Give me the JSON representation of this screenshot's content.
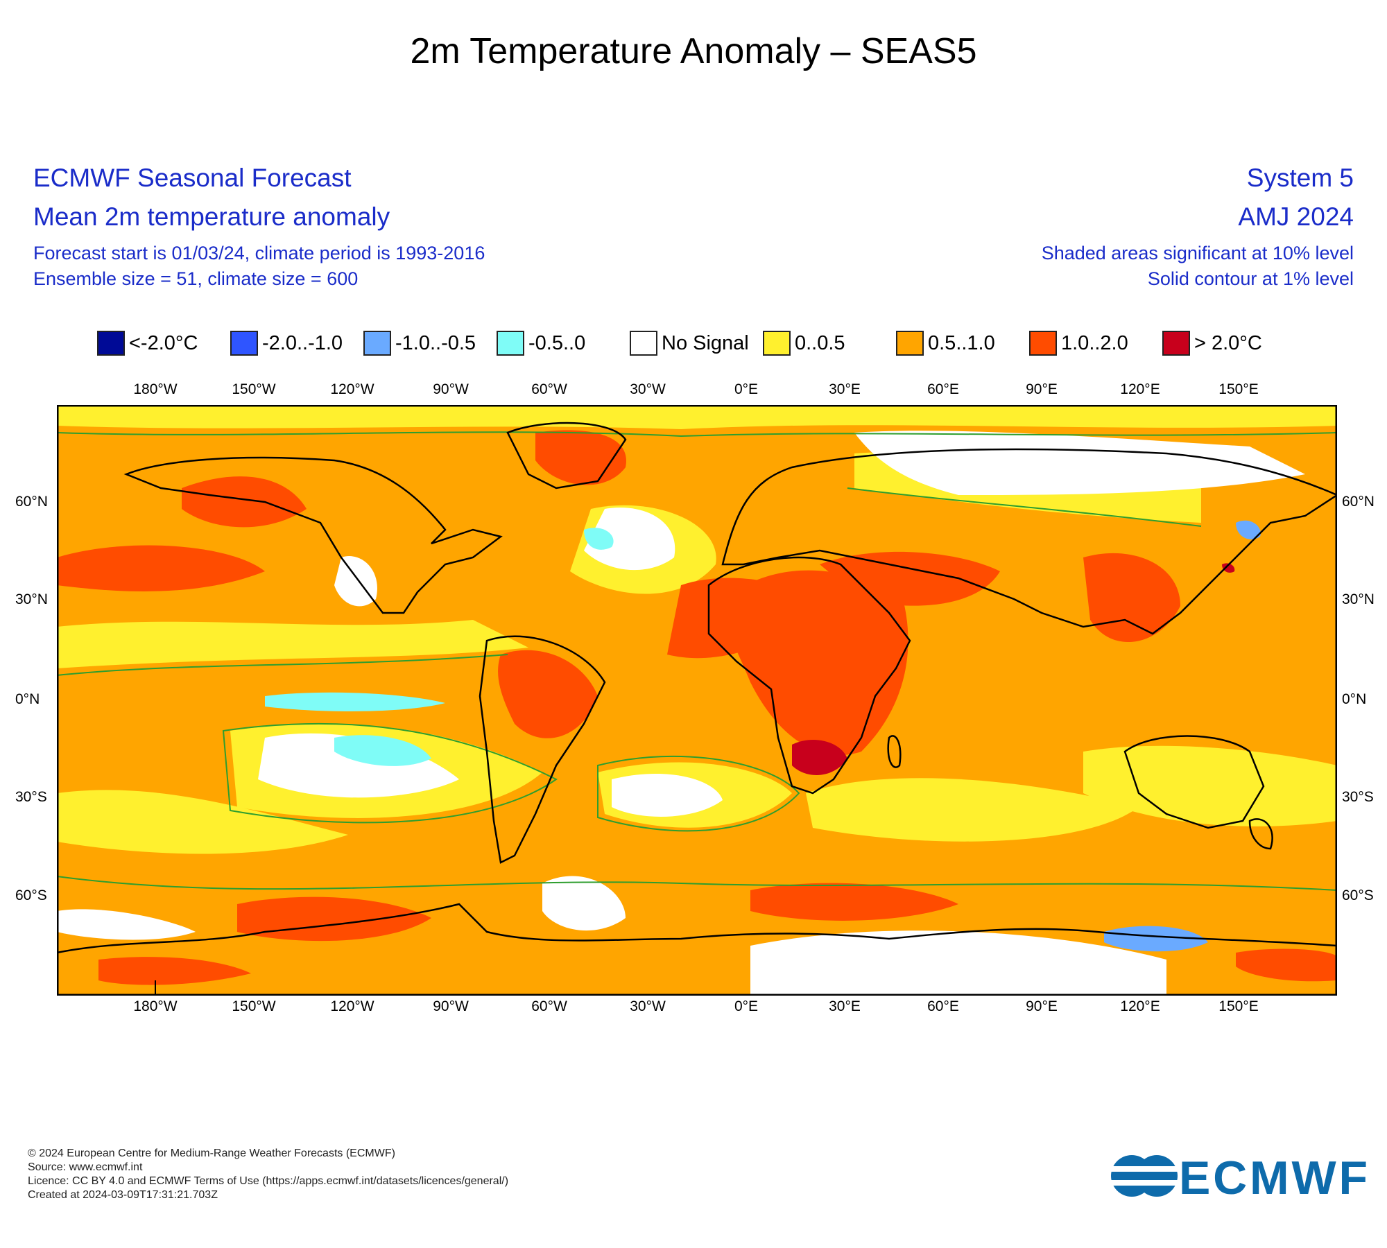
{
  "title": "2m Temperature Anomaly – SEAS5",
  "header_left": {
    "line1": "ECMWF Seasonal Forecast",
    "line2": "Mean 2m temperature anomaly",
    "line3": "Forecast start is 01/03/24, climate period is 1993-2016",
    "line4": "Ensemble size = 51, climate size = 600"
  },
  "header_right": {
    "line1": "System 5",
    "line2": "AMJ 2024",
    "line3": "Shaded areas significant at 10% level",
    "line4": "Solid contour at 1% level"
  },
  "legend": [
    {
      "label": "<-2.0°C",
      "color": "#000a96"
    },
    {
      "label": "-2.0..-1.0",
      "color": "#2f55ff"
    },
    {
      "label": "-1.0..-0.5",
      "color": "#6aaaff"
    },
    {
      "label": "-0.5..0",
      "color": "#7ffcf7"
    },
    {
      "label": "No Signal",
      "color": "#ffffff"
    },
    {
      "label": "0..0.5",
      "color": "#fff02e"
    },
    {
      "label": "0.5..1.0",
      "color": "#ffa500"
    },
    {
      "label": "1.0..2.0",
      "color": "#ff4c00"
    },
    {
      "label": "> 2.0°C",
      "color": "#c8001c"
    }
  ],
  "lon_labels": [
    "180°W",
    "150°W",
    "120°W",
    "90°W",
    "60°W",
    "30°W",
    "0°E",
    "30°E",
    "60°E",
    "90°E",
    "120°E",
    "150°E"
  ],
  "lat_labels_left": [
    "60°N",
    "30°N",
    "0°N",
    "30°S",
    "60°S"
  ],
  "lat_labels_right": [
    "60°N",
    "30°N",
    "0°N",
    "30°S",
    "60°S"
  ],
  "colors": {
    "header_blue": "#1a2cc9",
    "logo_blue": "#0e6bab",
    "ocean_base": "#ffa500",
    "contour": "#2e9e2e"
  },
  "footer": {
    "line1": "© 2024 European Centre for Medium-Range Weather Forecasts (ECMWF)",
    "line2": "Source: www.ecmwf.int",
    "line3": "Licence: CC BY 4.0 and ECMWF Terms of Use (https://apps.ecmwf.int/datasets/licences/general/)",
    "line4": "Created at 2024-03-09T17:31:21.703Z"
  },
  "logo_text": "ECMWF"
}
